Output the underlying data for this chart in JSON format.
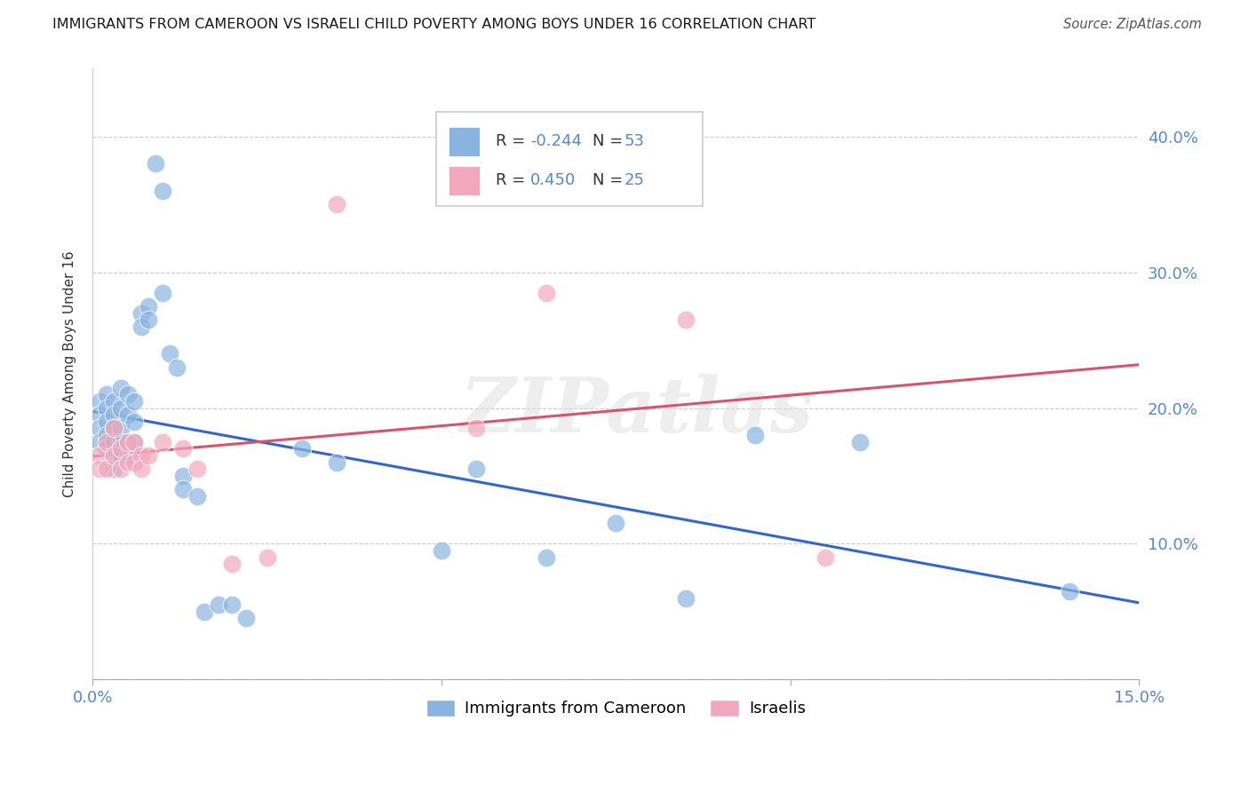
{
  "title": "IMMIGRANTS FROM CAMEROON VS ISRAELI CHILD POVERTY AMONG BOYS UNDER 16 CORRELATION CHART",
  "source": "Source: ZipAtlas.com",
  "ylabel": "Child Poverty Among Boys Under 16",
  "xlim": [
    0.0,
    0.15
  ],
  "ylim": [
    0.0,
    0.45
  ],
  "bg_color": "#ffffff",
  "blue_color": "#8ab4e0",
  "pink_color": "#f2a8bc",
  "blue_line_color": "#3366cc",
  "pink_line_color": "#d9536a",
  "legend_R_blue": "-0.244",
  "legend_N_blue": "53",
  "legend_R_pink": "0.450",
  "legend_N_pink": "25",
  "label_blue": "Immigrants from Cameroon",
  "label_pink": "Israelis",
  "tick_color": "#5588cc",
  "watermark": "ZIPatlas",
  "blue_x": [
    0.001,
    0.001,
    0.001,
    0.001,
    0.002,
    0.002,
    0.002,
    0.002,
    0.002,
    0.003,
    0.003,
    0.003,
    0.003,
    0.003,
    0.003,
    0.004,
    0.004,
    0.004,
    0.004,
    0.004,
    0.005,
    0.005,
    0.005,
    0.005,
    0.006,
    0.006,
    0.006,
    0.007,
    0.007,
    0.008,
    0.008,
    0.009,
    0.01,
    0.01,
    0.011,
    0.012,
    0.013,
    0.013,
    0.015,
    0.016,
    0.018,
    0.02,
    0.022,
    0.03,
    0.035,
    0.05,
    0.055,
    0.065,
    0.075,
    0.085,
    0.095,
    0.11,
    0.14
  ],
  "blue_y": [
    0.205,
    0.195,
    0.185,
    0.175,
    0.21,
    0.2,
    0.19,
    0.18,
    0.17,
    0.205,
    0.195,
    0.185,
    0.175,
    0.165,
    0.155,
    0.215,
    0.2,
    0.185,
    0.175,
    0.165,
    0.21,
    0.195,
    0.175,
    0.165,
    0.205,
    0.19,
    0.175,
    0.27,
    0.26,
    0.275,
    0.265,
    0.38,
    0.36,
    0.285,
    0.24,
    0.23,
    0.15,
    0.14,
    0.135,
    0.05,
    0.055,
    0.055,
    0.045,
    0.17,
    0.16,
    0.095,
    0.155,
    0.09,
    0.115,
    0.06,
    0.18,
    0.175,
    0.065
  ],
  "pink_x": [
    0.001,
    0.001,
    0.002,
    0.002,
    0.003,
    0.003,
    0.004,
    0.004,
    0.005,
    0.005,
    0.006,
    0.006,
    0.007,
    0.007,
    0.008,
    0.01,
    0.013,
    0.015,
    0.02,
    0.025,
    0.035,
    0.055,
    0.065,
    0.085,
    0.105
  ],
  "pink_y": [
    0.165,
    0.155,
    0.175,
    0.155,
    0.185,
    0.165,
    0.17,
    0.155,
    0.175,
    0.16,
    0.175,
    0.16,
    0.165,
    0.155,
    0.165,
    0.175,
    0.17,
    0.155,
    0.085,
    0.09,
    0.35,
    0.185,
    0.285,
    0.265,
    0.09
  ]
}
